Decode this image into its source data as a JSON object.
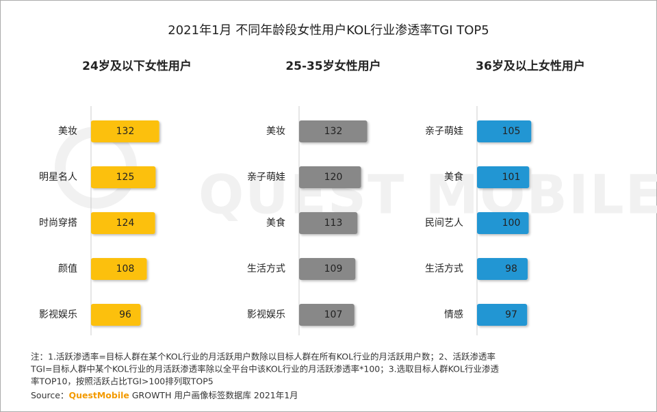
{
  "title": "2021年1月 不同年龄段女性用户KOL行业渗透率TGI TOP5",
  "watermark": "QUEST MOBILE",
  "chart_data": [
    {
      "type": "bar",
      "orientation": "horizontal",
      "title": "24岁及以下女性用户",
      "categories": [
        "美妆",
        "明星名人",
        "时尚穿搭",
        "颜值",
        "影视娱乐"
      ],
      "values": [
        132,
        125,
        124,
        108,
        96
      ],
      "color": "#fcc00e"
    },
    {
      "type": "bar",
      "orientation": "horizontal",
      "title": "25-35岁女性用户",
      "categories": [
        "美妆",
        "亲子萌娃",
        "美食",
        "生活方式",
        "影视娱乐"
      ],
      "values": [
        132,
        120,
        113,
        109,
        107
      ],
      "color": "#888888"
    },
    {
      "type": "bar",
      "orientation": "horizontal",
      "title": "36岁及以上女性用户",
      "categories": [
        "亲子萌娃",
        "美食",
        "民间艺人",
        "生活方式",
        "情感"
      ],
      "values": [
        105,
        101,
        100,
        98,
        97
      ],
      "color": "#2196d3"
    }
  ],
  "notes": [
    "注：1.活跃渗透率=目标人群在某个KOL行业的月活跃用户数除以目标人群在所有KOL行业的月活跃用户数；2、活跃渗透率",
    "TGI=目标人群中某个KOL行业的月活跃渗透率除以全平台中该KOL行业的月活跃渗透率*100；3.选取目标人群KOL行业渗透",
    "率TOP10，按照活跃占比TGI>100排列取TOP5"
  ],
  "source": {
    "label": "Source：",
    "brand": "QuestMobile",
    "text": " GROWTH 用户画像标签数据库 2021年1月"
  }
}
